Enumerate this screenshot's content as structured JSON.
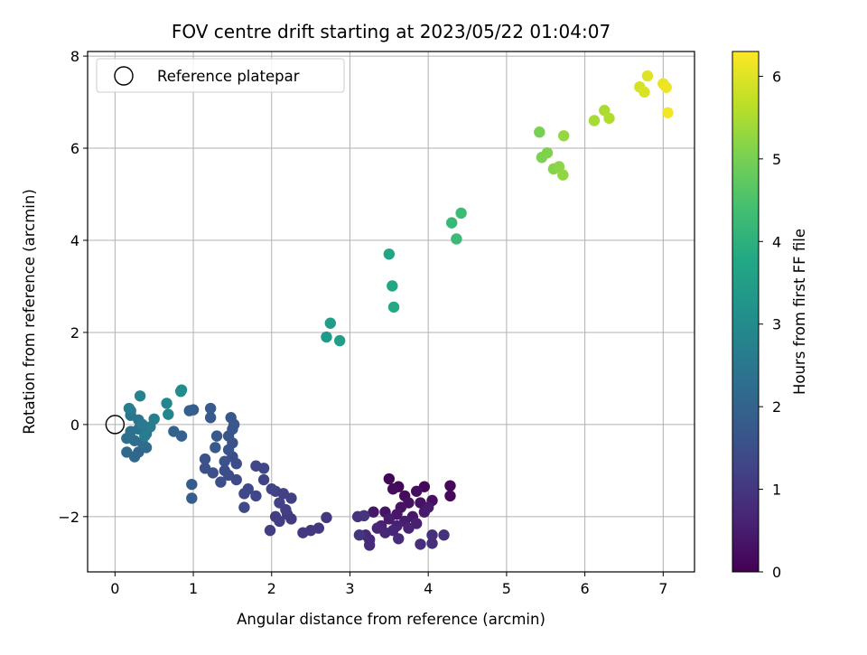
{
  "chart_data": {
    "type": "scatter",
    "title": "FOV centre drift starting at 2023/05/22 01:04:07",
    "xlabel": "Angular distance from reference (arcmin)",
    "ylabel": "Rotation from reference (arcmin)",
    "xlim": [
      -0.35,
      7.4
    ],
    "ylim": [
      -3.2,
      8.1
    ],
    "xticks": [
      0,
      1,
      2,
      3,
      4,
      5,
      6,
      7
    ],
    "yticks": [
      -2,
      0,
      2,
      4,
      6,
      8
    ],
    "grid": true,
    "legend": {
      "position": "top-left",
      "entries": [
        "Reference platepar"
      ]
    },
    "reference_point": {
      "x": 0,
      "y": 0,
      "label": "Reference platepar"
    },
    "colorbar": {
      "label": "Hours from first FF file",
      "range": [
        0,
        6.3
      ],
      "ticks": [
        0,
        1,
        2,
        3,
        4,
        5,
        6
      ],
      "colormap": "viridis"
    },
    "points": [
      {
        "x": 3.5,
        "y": -1.18,
        "t": 0.05
      },
      {
        "x": 3.62,
        "y": -1.35,
        "t": 0.08
      },
      {
        "x": 3.95,
        "y": -1.35,
        "t": 0.1
      },
      {
        "x": 4.28,
        "y": -1.33,
        "t": 0.12
      },
      {
        "x": 4.28,
        "y": -1.55,
        "t": 0.15
      },
      {
        "x": 3.55,
        "y": -1.4,
        "t": 0.18
      },
      {
        "x": 3.7,
        "y": -1.55,
        "t": 0.2
      },
      {
        "x": 3.85,
        "y": -1.45,
        "t": 0.22
      },
      {
        "x": 4.05,
        "y": -1.65,
        "t": 0.25
      },
      {
        "x": 3.75,
        "y": -1.7,
        "t": 0.28
      },
      {
        "x": 3.9,
        "y": -1.7,
        "t": 0.3
      },
      {
        "x": 3.65,
        "y": -1.8,
        "t": 0.32
      },
      {
        "x": 3.45,
        "y": -1.9,
        "t": 0.35
      },
      {
        "x": 3.3,
        "y": -1.9,
        "t": 0.38
      },
      {
        "x": 3.6,
        "y": -1.95,
        "t": 0.4
      },
      {
        "x": 3.8,
        "y": -2.0,
        "t": 0.42
      },
      {
        "x": 3.95,
        "y": -1.9,
        "t": 0.45
      },
      {
        "x": 4.0,
        "y": -1.8,
        "t": 0.48
      },
      {
        "x": 3.5,
        "y": -2.05,
        "t": 0.5
      },
      {
        "x": 3.7,
        "y": -2.1,
        "t": 0.52
      },
      {
        "x": 3.85,
        "y": -2.15,
        "t": 0.55
      },
      {
        "x": 3.4,
        "y": -2.2,
        "t": 0.58
      },
      {
        "x": 3.6,
        "y": -2.2,
        "t": 0.6
      },
      {
        "x": 3.75,
        "y": -2.25,
        "t": 0.62
      },
      {
        "x": 3.55,
        "y": -2.3,
        "t": 0.65
      },
      {
        "x": 3.35,
        "y": -2.25,
        "t": 0.68
      },
      {
        "x": 3.45,
        "y": -2.35,
        "t": 0.7
      },
      {
        "x": 3.2,
        "y": -2.4,
        "t": 0.72
      },
      {
        "x": 3.25,
        "y": -2.5,
        "t": 0.75
      },
      {
        "x": 3.25,
        "y": -2.62,
        "t": 0.78
      },
      {
        "x": 3.62,
        "y": -2.48,
        "t": 0.8
      },
      {
        "x": 3.9,
        "y": -2.6,
        "t": 0.82
      },
      {
        "x": 4.05,
        "y": -2.58,
        "t": 0.85
      },
      {
        "x": 4.05,
        "y": -2.4,
        "t": 0.88
      },
      {
        "x": 4.2,
        "y": -2.4,
        "t": 0.9
      },
      {
        "x": 3.1,
        "y": -2.0,
        "t": 0.92
      },
      {
        "x": 3.18,
        "y": -1.98,
        "t": 0.94
      },
      {
        "x": 3.12,
        "y": -2.4,
        "t": 0.96
      },
      {
        "x": 2.7,
        "y": -2.02,
        "t": 0.98
      },
      {
        "x": 2.6,
        "y": -2.25,
        "t": 1.0
      },
      {
        "x": 2.5,
        "y": -2.3,
        "t": 1.02
      },
      {
        "x": 2.4,
        "y": -2.35,
        "t": 1.04
      },
      {
        "x": 2.25,
        "y": -2.05,
        "t": 1.06
      },
      {
        "x": 2.2,
        "y": -1.95,
        "t": 1.08
      },
      {
        "x": 2.05,
        "y": -2.0,
        "t": 1.1
      },
      {
        "x": 2.1,
        "y": -2.1,
        "t": 1.12
      },
      {
        "x": 1.98,
        "y": -2.3,
        "t": 1.14
      },
      {
        "x": 2.18,
        "y": -1.85,
        "t": 1.16
      },
      {
        "x": 2.25,
        "y": -1.6,
        "t": 1.18
      },
      {
        "x": 2.15,
        "y": -1.5,
        "t": 1.2
      },
      {
        "x": 2.05,
        "y": -1.45,
        "t": 1.22
      },
      {
        "x": 2.1,
        "y": -1.7,
        "t": 1.24
      },
      {
        "x": 2.0,
        "y": -1.4,
        "t": 1.26
      },
      {
        "x": 1.9,
        "y": -1.2,
        "t": 1.28
      },
      {
        "x": 1.8,
        "y": -0.9,
        "t": 1.3
      },
      {
        "x": 1.9,
        "y": -0.95,
        "t": 1.32
      },
      {
        "x": 1.8,
        "y": -1.55,
        "t": 1.34
      },
      {
        "x": 1.7,
        "y": -1.4,
        "t": 1.36
      },
      {
        "x": 1.65,
        "y": -1.5,
        "t": 1.38
      },
      {
        "x": 1.65,
        "y": -1.8,
        "t": 1.4
      },
      {
        "x": 1.55,
        "y": -1.2,
        "t": 1.42
      },
      {
        "x": 1.45,
        "y": -1.1,
        "t": 1.44
      },
      {
        "x": 1.55,
        "y": -0.85,
        "t": 1.46
      },
      {
        "x": 1.5,
        "y": -0.7,
        "t": 1.48
      },
      {
        "x": 1.4,
        "y": -1.0,
        "t": 1.5
      },
      {
        "x": 1.35,
        "y": -1.25,
        "t": 1.52
      },
      {
        "x": 1.25,
        "y": -1.05,
        "t": 1.54
      },
      {
        "x": 1.15,
        "y": -0.95,
        "t": 1.56
      },
      {
        "x": 1.15,
        "y": -0.75,
        "t": 1.58
      },
      {
        "x": 1.4,
        "y": -0.8,
        "t": 1.6
      },
      {
        "x": 1.45,
        "y": -0.55,
        "t": 1.62
      },
      {
        "x": 1.5,
        "y": -0.4,
        "t": 1.64
      },
      {
        "x": 1.45,
        "y": -0.25,
        "t": 1.66
      },
      {
        "x": 1.5,
        "y": -0.1,
        "t": 1.68
      },
      {
        "x": 1.52,
        "y": 0.0,
        "t": 1.7
      },
      {
        "x": 1.48,
        "y": 0.15,
        "t": 1.72
      },
      {
        "x": 1.3,
        "y": -0.25,
        "t": 1.74
      },
      {
        "x": 1.28,
        "y": -0.5,
        "t": 1.76
      },
      {
        "x": 1.22,
        "y": 0.15,
        "t": 1.78
      },
      {
        "x": 1.22,
        "y": 0.35,
        "t": 1.8
      },
      {
        "x": 0.98,
        "y": -1.3,
        "t": 1.82
      },
      {
        "x": 0.98,
        "y": -1.6,
        "t": 1.84
      },
      {
        "x": 1.0,
        "y": 0.32,
        "t": 1.86
      },
      {
        "x": 0.95,
        "y": 0.3,
        "t": 1.9
      },
      {
        "x": 0.85,
        "y": -0.25,
        "t": 1.95
      },
      {
        "x": 0.75,
        "y": -0.15,
        "t": 2.0
      },
      {
        "x": 0.3,
        "y": -0.6,
        "t": 2.05
      },
      {
        "x": 0.25,
        "y": -0.7,
        "t": 2.1
      },
      {
        "x": 0.15,
        "y": -0.6,
        "t": 2.15
      },
      {
        "x": 0.4,
        "y": -0.5,
        "t": 2.2
      },
      {
        "x": 0.35,
        "y": -0.4,
        "t": 2.22
      },
      {
        "x": 0.25,
        "y": -0.35,
        "t": 2.25
      },
      {
        "x": 0.15,
        "y": -0.3,
        "t": 2.3
      },
      {
        "x": 0.2,
        "y": -0.15,
        "t": 2.35
      },
      {
        "x": 0.3,
        "y": -0.1,
        "t": 2.38
      },
      {
        "x": 0.4,
        "y": -0.2,
        "t": 2.4
      },
      {
        "x": 0.3,
        "y": 0.1,
        "t": 2.42
      },
      {
        "x": 0.2,
        "y": 0.2,
        "t": 2.45
      },
      {
        "x": 0.2,
        "y": 0.3,
        "t": 2.5
      },
      {
        "x": 0.35,
        "y": 0.0,
        "t": 2.55
      },
      {
        "x": 0.45,
        "y": -0.05,
        "t": 2.6
      },
      {
        "x": 0.38,
        "y": -0.25,
        "t": 2.62
      },
      {
        "x": 0.18,
        "y": 0.35,
        "t": 2.65
      },
      {
        "x": 0.5,
        "y": 0.12,
        "t": 2.7
      },
      {
        "x": 0.32,
        "y": 0.62,
        "t": 2.8
      },
      {
        "x": 0.68,
        "y": 0.22,
        "t": 2.85
      },
      {
        "x": 0.66,
        "y": 0.46,
        "t": 2.9
      },
      {
        "x": 0.84,
        "y": 0.72,
        "t": 3.0
      },
      {
        "x": 0.85,
        "y": 0.75,
        "t": 3.05
      },
      {
        "x": 2.7,
        "y": 1.9,
        "t": 3.4
      },
      {
        "x": 2.75,
        "y": 2.2,
        "t": 3.45
      },
      {
        "x": 2.87,
        "y": 1.82,
        "t": 3.5
      },
      {
        "x": 3.5,
        "y": 3.7,
        "t": 3.7
      },
      {
        "x": 3.54,
        "y": 3.01,
        "t": 3.75
      },
      {
        "x": 3.56,
        "y": 2.55,
        "t": 3.8
      },
      {
        "x": 4.3,
        "y": 4.38,
        "t": 4.2
      },
      {
        "x": 4.36,
        "y": 4.03,
        "t": 4.25
      },
      {
        "x": 4.42,
        "y": 4.59,
        "t": 4.3
      },
      {
        "x": 5.42,
        "y": 6.35,
        "t": 5.0
      },
      {
        "x": 5.45,
        "y": 5.8,
        "t": 5.05
      },
      {
        "x": 5.52,
        "y": 5.9,
        "t": 5.1
      },
      {
        "x": 5.6,
        "y": 5.55,
        "t": 5.15
      },
      {
        "x": 5.67,
        "y": 5.6,
        "t": 5.2
      },
      {
        "x": 5.72,
        "y": 5.42,
        "t": 5.25
      },
      {
        "x": 5.73,
        "y": 6.27,
        "t": 5.3
      },
      {
        "x": 6.12,
        "y": 6.6,
        "t": 5.45
      },
      {
        "x": 6.25,
        "y": 6.82,
        "t": 5.5
      },
      {
        "x": 6.31,
        "y": 6.65,
        "t": 5.55
      },
      {
        "x": 6.7,
        "y": 7.33,
        "t": 5.9
      },
      {
        "x": 6.76,
        "y": 7.22,
        "t": 5.95
      },
      {
        "x": 6.8,
        "y": 7.57,
        "t": 6.0
      },
      {
        "x": 7.0,
        "y": 7.4,
        "t": 6.1
      },
      {
        "x": 7.04,
        "y": 7.32,
        "t": 6.15
      },
      {
        "x": 7.06,
        "y": 6.77,
        "t": 6.2
      }
    ]
  }
}
